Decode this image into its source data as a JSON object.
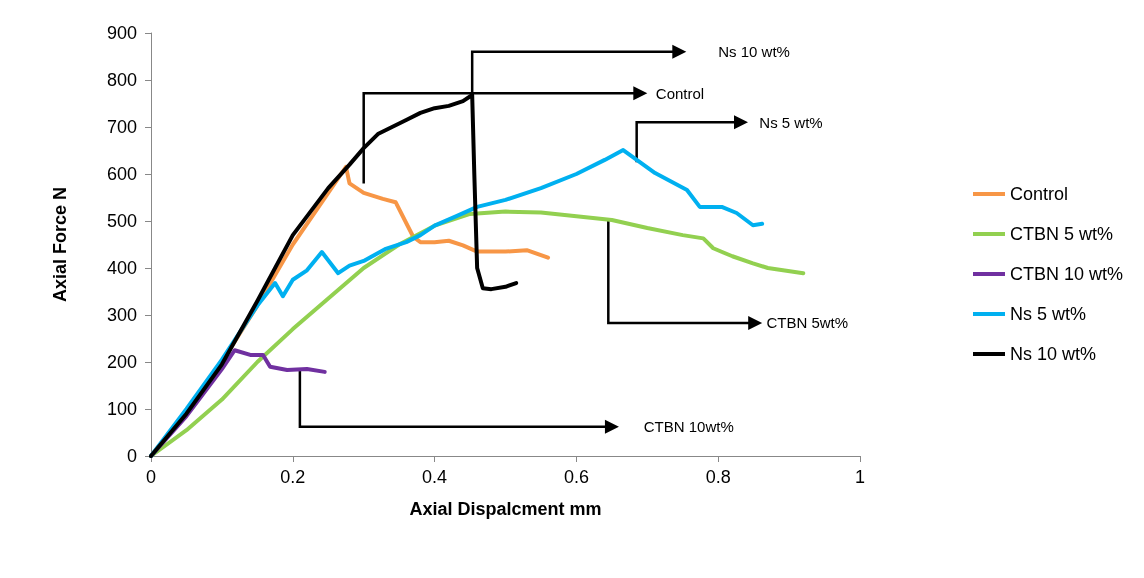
{
  "chart_data": {
    "type": "line",
    "xlabel": "Axial Dispalcment mm",
    "ylabel": "Axial Force N",
    "xlim": [
      0,
      1
    ],
    "xticks": [
      0,
      0.2,
      0.4,
      0.6,
      0.8,
      1
    ],
    "ylim": [
      0,
      900
    ],
    "yticks": [
      0,
      100,
      200,
      300,
      400,
      500,
      600,
      700,
      800,
      900
    ],
    "grid": false,
    "legend": "right",
    "marker": "none",
    "line_style": "solid",
    "series": [
      {
        "name": "Control",
        "color": "#f79646",
        "x": [
          0,
          0.05,
          0.1,
          0.15,
          0.2,
          0.25,
          0.275,
          0.28,
          0.3,
          0.327,
          0.345,
          0.37,
          0.38,
          0.4,
          0.42,
          0.44,
          0.46,
          0.5,
          0.53,
          0.56
        ],
        "values": [
          0,
          95,
          200,
          320,
          450,
          560,
          615,
          580,
          560,
          547,
          540,
          466,
          455,
          455,
          458,
          448,
          435,
          435,
          438,
          422
        ]
      },
      {
        "name": "CTBN 5 wt%",
        "color": "#92d050",
        "x": [
          0,
          0.05,
          0.1,
          0.15,
          0.2,
          0.25,
          0.3,
          0.35,
          0.4,
          0.45,
          0.5,
          0.55,
          0.6,
          0.65,
          0.7,
          0.75,
          0.779,
          0.793,
          0.82,
          0.849,
          0.87,
          0.92
        ],
        "values": [
          0,
          55,
          120,
          200,
          270,
          335,
          400,
          450,
          490,
          515,
          520,
          518,
          510,
          502,
          485,
          470,
          463,
          442,
          425,
          410,
          400,
          389
        ]
      },
      {
        "name": "CTBN 10 wt%",
        "color": "#7030a0",
        "x": [
          0,
          0.05,
          0.1,
          0.118,
          0.14,
          0.158,
          0.168,
          0.192,
          0.22,
          0.245
        ],
        "values": [
          0,
          85,
          185,
          225,
          215,
          215,
          190,
          183,
          185,
          179
        ]
      },
      {
        "name": "Ns 5 wt%",
        "color": "#00b0f0",
        "x": [
          0,
          0.05,
          0.1,
          0.15,
          0.175,
          0.186,
          0.2,
          0.22,
          0.241,
          0.264,
          0.28,
          0.3,
          0.33,
          0.36,
          0.38,
          0.4,
          0.43,
          0.46,
          0.5,
          0.55,
          0.6,
          0.64,
          0.666,
          0.711,
          0.756,
          0.774,
          0.805,
          0.826,
          0.849,
          0.862
        ],
        "values": [
          0,
          100,
          205,
          320,
          368,
          340,
          375,
          395,
          434,
          389,
          405,
          415,
          440,
          455,
          470,
          490,
          510,
          530,
          545,
          570,
          600,
          630,
          651,
          602,
          566,
          530,
          530,
          517,
          491,
          494
        ]
      },
      {
        "name": "Ns 10 wt%",
        "color": "#000000",
        "x": [
          0,
          0.05,
          0.1,
          0.15,
          0.2,
          0.25,
          0.28,
          0.3,
          0.32,
          0.34,
          0.36,
          0.38,
          0.4,
          0.42,
          0.44,
          0.453,
          0.456,
          0.46,
          0.468,
          0.48,
          0.5,
          0.515
        ],
        "values": [
          0,
          90,
          195,
          330,
          470,
          570,
          620,
          655,
          685,
          700,
          715,
          730,
          740,
          745,
          755,
          768,
          600,
          400,
          357,
          355,
          360,
          368
        ]
      }
    ],
    "annotations": [
      "Ns 10 wt%",
      "Control",
      "Ns 5 wt%",
      "CTBN 5wt%",
      "CTBN 10wt%"
    ]
  }
}
